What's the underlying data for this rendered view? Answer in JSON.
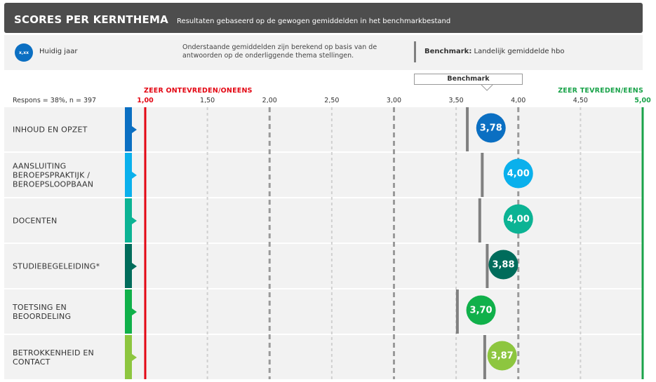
{
  "header": {
    "title": "SCORES PER KERNTHEMA",
    "subtitle": "Resultaten gebaseerd op de gewogen gemiddelden in het benchmarkbestand"
  },
  "legend": {
    "dot_label": "x,xx",
    "current_year": "Huidig jaar",
    "note": "Onderstaande gemiddelden zijn berekend op basis van de antwoorden op de onderliggende thema stellingen.",
    "benchmark_bold": "Benchmark:",
    "benchmark_text": "Landelijk gemiddelde hbo"
  },
  "respons": "Respons = 38%, n = 397",
  "chart_data": {
    "type": "dot",
    "xlim": [
      1.0,
      5.0
    ],
    "ticks": [
      "1,00",
      "1,50",
      "2,00",
      "2,50",
      "3,00",
      "3,50",
      "4,00",
      "4,50",
      "5,00"
    ],
    "tick_values": [
      1.0,
      1.5,
      2.0,
      2.5,
      3.0,
      3.5,
      4.0,
      4.5,
      5.0
    ],
    "min_label": "ZEER ONTEVREDEN/ONEENS",
    "max_label": "ZEER TEVREDEN/EENS",
    "benchmark_label": "Benchmark",
    "categories": [
      "INHOUD EN OPZET",
      "AANSLUITING BEROEPSPRAKTIJK / BEROEPSLOOPBAAN",
      "DOCENTEN",
      "STUDIEBEGELEIDING*",
      "TOETSING EN BEOORDELING",
      "BETROKKENHEID EN CONTACT"
    ],
    "series": [
      {
        "name": "Huidig jaar",
        "values": [
          3.78,
          4.0,
          4.0,
          3.88,
          3.7,
          3.87
        ],
        "labels": [
          "3,78",
          "4,00",
          "4,00",
          "3,88",
          "3,70",
          "3,87"
        ]
      },
      {
        "name": "Benchmark",
        "values": [
          3.59,
          3.71,
          3.69,
          3.75,
          3.51,
          3.73
        ]
      }
    ],
    "colors": [
      "#0b6fc2",
      "#0ab0ec",
      "#0cb394",
      "#006c5b",
      "#10b04a",
      "#8dc63f"
    ],
    "min_line_color": "#e30613",
    "max_line_color": "#1aa34a"
  }
}
